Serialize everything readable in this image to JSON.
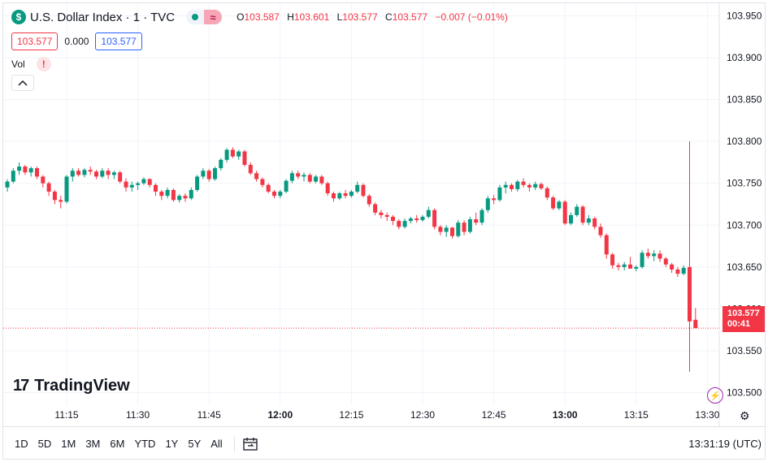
{
  "header": {
    "symbol_icon": "$",
    "title": "U.S. Dollar Index · 1 · TVC",
    "open_label": "O",
    "open": "103.587",
    "high_label": "H",
    "high": "103.601",
    "low_label": "L",
    "low": "103.577",
    "close_label": "C",
    "close": "103.577",
    "change": "−0.007 (−0.01%)",
    "bid": "103.577",
    "spread": "0.000",
    "ask": "103.577",
    "vol_label": "Vol",
    "warn_icon": "!",
    "collapse_icon": "^",
    "wave_icon": "≈"
  },
  "logo": {
    "mark": "17",
    "text": "TradingView"
  },
  "price_tag": {
    "price": "103.577",
    "countdown": "00:41"
  },
  "bottom": {
    "ranges": [
      "1D",
      "5D",
      "1M",
      "3M",
      "6M",
      "YTD",
      "1Y",
      "5Y",
      "All"
    ],
    "clock": "13:31:19 (UTC)"
  },
  "colors": {
    "up": "#089981",
    "down": "#f23645",
    "grid": "#f0f3fa",
    "text": "#131722"
  },
  "icons": [
    "dollar-icon",
    "dot-icon",
    "wave-icon",
    "warning-icon",
    "chevron-up-icon",
    "calendar-compare-icon",
    "bolt-icon",
    "gear-icon"
  ],
  "chart_data": {
    "type": "candlestick",
    "y_ticks": [
      "103.950",
      "103.900",
      "103.850",
      "103.800",
      "103.750",
      "103.700",
      "103.650",
      "103.600",
      "103.550",
      "103.500"
    ],
    "x_ticks": [
      "11:15",
      "11:30",
      "11:45",
      "12:00",
      "12:15",
      "12:30",
      "12:45",
      "13:00",
      "13:15",
      "13:30"
    ],
    "x_ticks_bold": [
      "12:00",
      "13:00"
    ],
    "ylim": [
      103.485,
      103.965
    ],
    "last_price": 103.577,
    "interval": "1 minute",
    "ohlc": [
      [
        103.745,
        103.755,
        103.74,
        103.752
      ],
      [
        103.752,
        103.768,
        103.75,
        103.765
      ],
      [
        103.765,
        103.775,
        103.76,
        103.77
      ],
      [
        103.77,
        103.772,
        103.76,
        103.763
      ],
      [
        103.763,
        103.77,
        103.758,
        103.768
      ],
      [
        103.768,
        103.77,
        103.755,
        103.758
      ],
      [
        103.758,
        103.76,
        103.745,
        103.75
      ],
      [
        103.75,
        103.752,
        103.735,
        103.74
      ],
      [
        103.74,
        103.742,
        103.725,
        103.73
      ],
      [
        103.73,
        103.735,
        103.72,
        103.728
      ],
      [
        103.728,
        103.76,
        103.726,
        103.758
      ],
      [
        103.758,
        103.768,
        103.752,
        103.765
      ],
      [
        103.765,
        103.768,
        103.758,
        103.76
      ],
      [
        103.76,
        103.768,
        103.757,
        103.766
      ],
      [
        103.766,
        103.77,
        103.76,
        103.764
      ],
      [
        103.764,
        103.766,
        103.755,
        103.758
      ],
      [
        103.758,
        103.768,
        103.756,
        103.765
      ],
      [
        103.765,
        103.768,
        103.755,
        103.76
      ],
      [
        103.76,
        103.765,
        103.755,
        103.763
      ],
      [
        103.763,
        103.765,
        103.75,
        103.752
      ],
      [
        103.752,
        103.756,
        103.74,
        103.745
      ],
      [
        103.745,
        103.752,
        103.74,
        103.748
      ],
      [
        103.748,
        103.752,
        103.742,
        103.75
      ],
      [
        103.75,
        103.757,
        103.748,
        103.755
      ],
      [
        103.755,
        103.756,
        103.745,
        103.748
      ],
      [
        103.748,
        103.75,
        103.735,
        103.74
      ],
      [
        103.74,
        103.742,
        103.73,
        103.735
      ],
      [
        103.735,
        103.745,
        103.732,
        103.742
      ],
      [
        103.742,
        103.744,
        103.728,
        103.73
      ],
      [
        103.73,
        103.737,
        103.727,
        103.735
      ],
      [
        103.735,
        103.738,
        103.728,
        103.732
      ],
      [
        103.732,
        103.745,
        103.73,
        103.742
      ],
      [
        103.742,
        103.76,
        103.74,
        103.758
      ],
      [
        103.758,
        103.768,
        103.755,
        103.765
      ],
      [
        103.765,
        103.767,
        103.752,
        103.755
      ],
      [
        103.755,
        103.77,
        103.753,
        103.768
      ],
      [
        103.768,
        103.78,
        103.765,
        103.778
      ],
      [
        103.778,
        103.792,
        103.775,
        103.79
      ],
      [
        103.79,
        103.793,
        103.78,
        103.782
      ],
      [
        103.782,
        103.79,
        103.778,
        103.788
      ],
      [
        103.788,
        103.79,
        103.77,
        103.772
      ],
      [
        103.772,
        103.775,
        103.76,
        103.762
      ],
      [
        103.762,
        103.765,
        103.752,
        103.755
      ],
      [
        103.755,
        103.757,
        103.745,
        103.748
      ],
      [
        103.748,
        103.75,
        103.738,
        103.74
      ],
      [
        103.74,
        103.742,
        103.732,
        103.735
      ],
      [
        103.735,
        103.742,
        103.732,
        103.74
      ],
      [
        103.74,
        103.755,
        103.738,
        103.753
      ],
      [
        103.753,
        103.765,
        103.75,
        103.762
      ],
      [
        103.762,
        103.765,
        103.755,
        103.758
      ],
      [
        103.758,
        103.763,
        103.752,
        103.76
      ],
      [
        103.76,
        103.762,
        103.75,
        103.752
      ],
      [
        103.752,
        103.76,
        103.75,
        103.758
      ],
      [
        103.758,
        103.76,
        103.748,
        103.75
      ],
      [
        103.75,
        103.752,
        103.735,
        103.738
      ],
      [
        103.738,
        103.74,
        103.728,
        103.732
      ],
      [
        103.732,
        103.74,
        103.73,
        103.738
      ],
      [
        103.738,
        103.742,
        103.732,
        103.735
      ],
      [
        103.735,
        103.742,
        103.733,
        103.74
      ],
      [
        103.74,
        103.752,
        103.738,
        103.748
      ],
      [
        103.748,
        103.75,
        103.733,
        103.735
      ],
      [
        103.735,
        103.737,
        103.722,
        103.725
      ],
      [
        103.725,
        103.727,
        103.712,
        103.715
      ],
      [
        103.715,
        103.718,
        103.708,
        103.712
      ],
      [
        103.712,
        103.715,
        103.705,
        103.71
      ],
      [
        103.71,
        103.712,
        103.7,
        103.705
      ],
      [
        103.705,
        103.707,
        103.695,
        103.698
      ],
      [
        103.698,
        103.708,
        103.696,
        103.705
      ],
      [
        103.705,
        103.71,
        103.702,
        103.708
      ],
      [
        103.708,
        103.712,
        103.703,
        103.706
      ],
      [
        103.706,
        103.712,
        103.704,
        103.71
      ],
      [
        103.71,
        103.722,
        103.708,
        103.718
      ],
      [
        103.718,
        103.72,
        103.695,
        103.698
      ],
      [
        103.698,
        103.7,
        103.688,
        103.692
      ],
      [
        103.692,
        103.7,
        103.686,
        103.697
      ],
      [
        103.697,
        103.698,
        103.684,
        103.687
      ],
      [
        103.687,
        103.706,
        103.685,
        103.703
      ],
      [
        103.703,
        103.706,
        103.688,
        103.692
      ],
      [
        103.692,
        103.71,
        103.69,
        103.707
      ],
      [
        103.707,
        103.715,
        103.7,
        103.703
      ],
      [
        103.703,
        103.72,
        103.7,
        103.718
      ],
      [
        103.718,
        103.735,
        103.715,
        103.732
      ],
      [
        103.732,
        103.736,
        103.725,
        103.73
      ],
      [
        103.73,
        103.748,
        103.728,
        103.745
      ],
      [
        103.745,
        103.752,
        103.738,
        103.748
      ],
      [
        103.748,
        103.75,
        103.74,
        103.743
      ],
      [
        103.743,
        103.754,
        103.74,
        103.752
      ],
      [
        103.752,
        103.756,
        103.745,
        103.748
      ],
      [
        103.748,
        103.75,
        103.74,
        103.745
      ],
      [
        103.745,
        103.752,
        103.742,
        103.749
      ],
      [
        103.749,
        103.751,
        103.742,
        103.744
      ],
      [
        103.744,
        103.746,
        103.73,
        103.733
      ],
      [
        103.733,
        103.735,
        103.718,
        103.72
      ],
      [
        103.72,
        103.73,
        103.718,
        103.728
      ],
      [
        103.728,
        103.73,
        103.7,
        103.702
      ],
      [
        103.702,
        103.715,
        103.7,
        103.712
      ],
      [
        103.712,
        103.725,
        103.71,
        103.722
      ],
      [
        103.722,
        103.724,
        103.7,
        103.703
      ],
      [
        103.703,
        103.712,
        103.7,
        103.708
      ],
      [
        103.708,
        103.71,
        103.695,
        103.698
      ],
      [
        103.698,
        103.702,
        103.685,
        103.688
      ],
      [
        103.688,
        103.69,
        103.66,
        103.665
      ],
      [
        103.665,
        103.667,
        103.648,
        103.652
      ],
      [
        103.652,
        103.655,
        103.646,
        103.65
      ],
      [
        103.65,
        103.656,
        103.646,
        103.653
      ],
      [
        103.653,
        103.662,
        103.65,
        103.648
      ],
      [
        103.648,
        103.652,
        103.645,
        103.65
      ],
      [
        103.65,
        103.67,
        103.648,
        103.667
      ],
      [
        103.667,
        103.672,
        103.66,
        103.663
      ],
      [
        103.663,
        103.67,
        103.657,
        103.666
      ],
      [
        103.666,
        103.67,
        103.656,
        103.66
      ],
      [
        103.66,
        103.662,
        103.65,
        103.653
      ],
      [
        103.653,
        103.655,
        103.643,
        103.647
      ],
      [
        103.647,
        103.65,
        103.638,
        103.642
      ],
      [
        103.642,
        103.652,
        103.64,
        103.649
      ],
      [
        103.65,
        103.8,
        103.525,
        103.585
      ],
      [
        103.587,
        103.601,
        103.577,
        103.577
      ]
    ]
  }
}
